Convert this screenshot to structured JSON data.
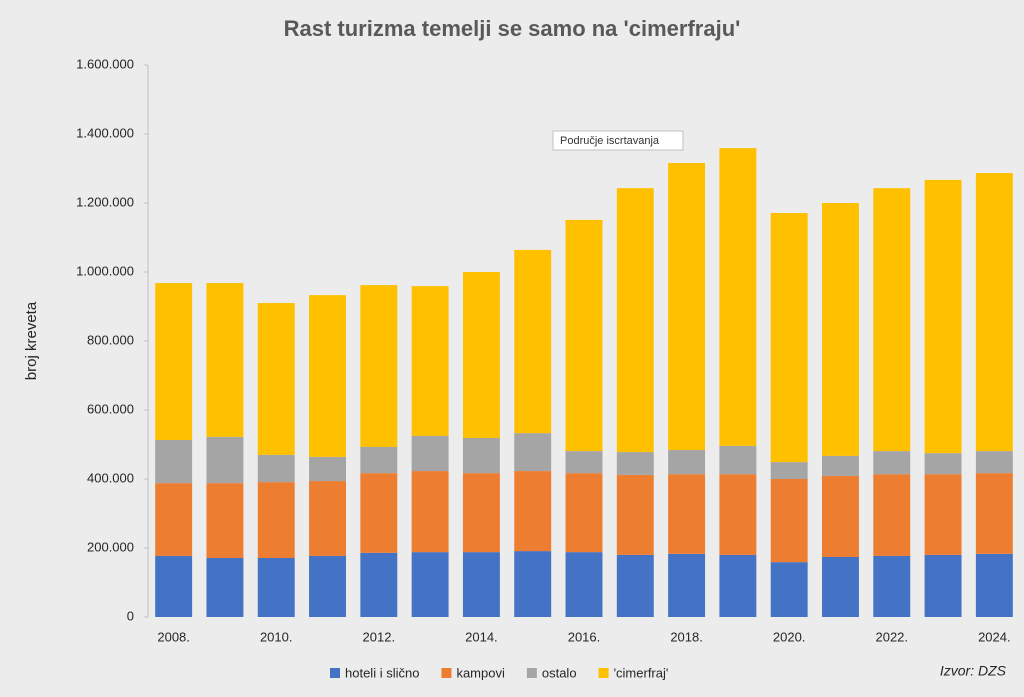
{
  "chart_data": {
    "type": "stacked-bar",
    "title": "Rast turizma temelji se samo na 'cimerfraju'",
    "y_label": "broj kreveta",
    "source": "Izvor: DZS",
    "annotation": "Područje iscrtavanja",
    "categories": [
      "2008.",
      null,
      "2010.",
      null,
      "2012.",
      null,
      "2014.",
      null,
      "2016.",
      null,
      "2018.",
      null,
      "2020.",
      null,
      "2022.",
      null,
      "2024."
    ],
    "series": [
      {
        "name": "hoteli i slično",
        "color": "#4472c4",
        "values": [
          177000,
          171000,
          171000,
          177000,
          186000,
          188000,
          188000,
          191000,
          188000,
          180000,
          183000,
          180000,
          159000,
          174000,
          177000,
          180000,
          183000
        ]
      },
      {
        "name": "kampovi",
        "color": "#ed7d31",
        "values": [
          211000,
          217000,
          220000,
          217000,
          231000,
          235000,
          229000,
          232000,
          229000,
          232000,
          231000,
          234000,
          241000,
          235000,
          237000,
          234000,
          234000
        ]
      },
      {
        "name": "ostalo",
        "color": "#a5a5a5",
        "values": [
          125000,
          134000,
          79000,
          70000,
          76000,
          102000,
          102000,
          110000,
          64000,
          66000,
          70000,
          82000,
          49000,
          58000,
          67000,
          61000,
          64000
        ]
      },
      {
        "name": "'cimerfraj'",
        "color": "#ffc000",
        "values": [
          455000,
          446000,
          440000,
          469000,
          469000,
          434000,
          481000,
          531000,
          670000,
          765000,
          832000,
          863000,
          722000,
          733000,
          762000,
          792000,
          806000
        ]
      }
    ],
    "ylim": [
      0,
      1600000
    ],
    "yticks": [
      0,
      {
        "value": 200000,
        "label": "200.000"
      },
      {
        "value": 400000,
        "label": "400.000"
      },
      {
        "value": 600000,
        "label": "600.000"
      },
      {
        "value": 800000,
        "label": "800.000"
      },
      {
        "value": 1000000,
        "label": "1.000.000"
      },
      {
        "value": 1200000,
        "label": "1.200.000"
      },
      {
        "value": 1400000,
        "label": "1.400.000"
      },
      {
        "value": 1600000,
        "label": "1.600.000"
      }
    ]
  }
}
